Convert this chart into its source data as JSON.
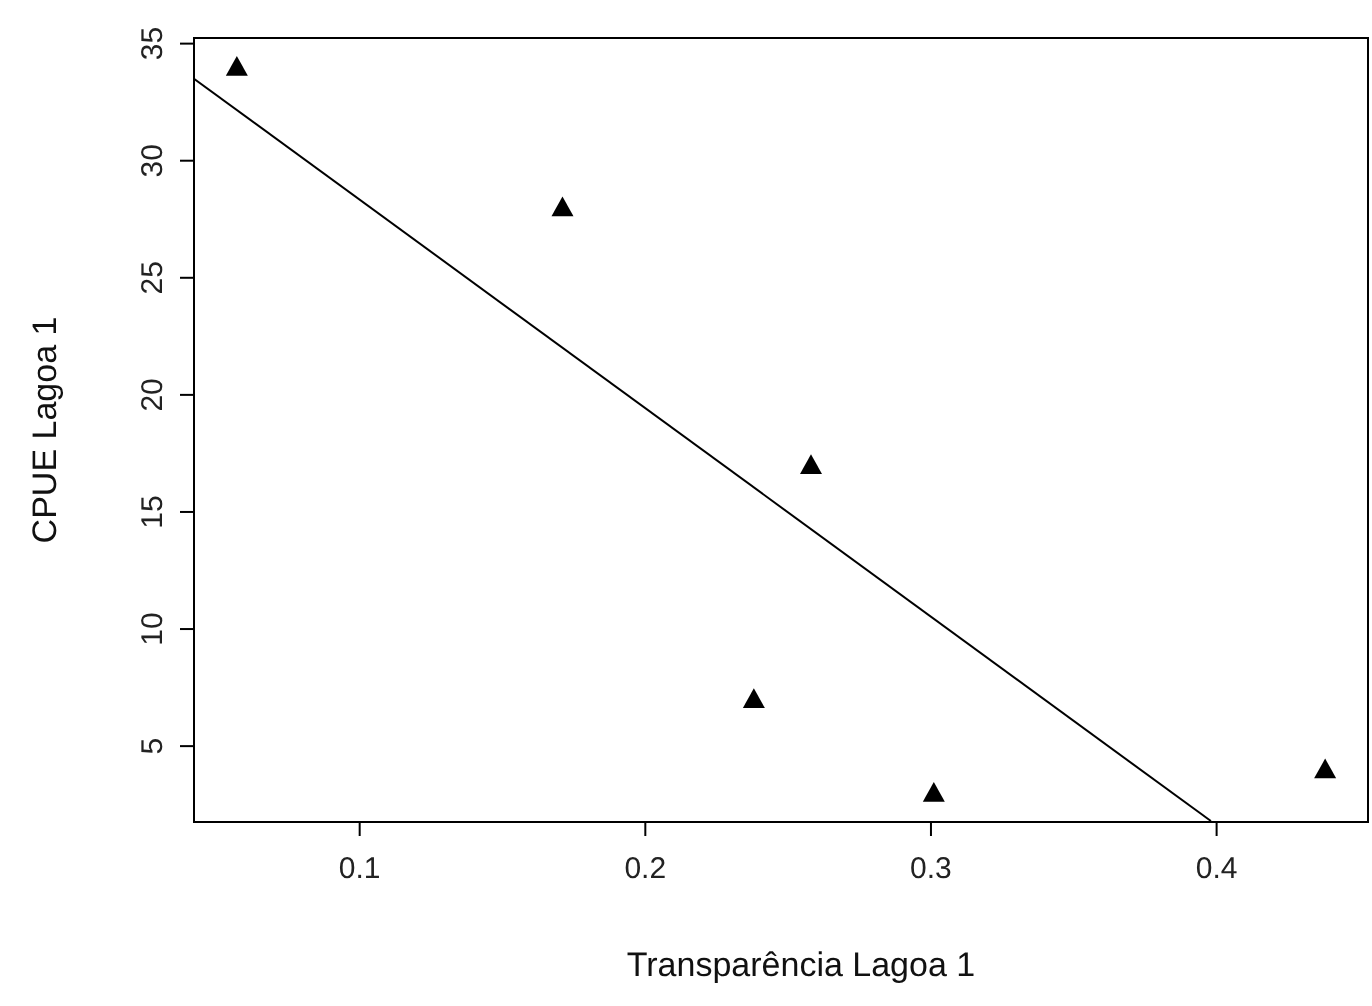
{
  "chart_data": {
    "type": "scatter",
    "xlabel": "Transparência Lagoa 1",
    "ylabel": "CPUE Lagoa 1",
    "xlim": [
      0.042,
      0.453
    ],
    "ylim": [
      1.76,
      35.24
    ],
    "xticks": [
      0.1,
      0.2,
      0.3,
      0.4
    ],
    "yticks": [
      5,
      10,
      15,
      20,
      25,
      30,
      35
    ],
    "grid": false,
    "marker": "triangle",
    "series": [
      {
        "color": "#000000",
        "x": [
          0.057,
          0.171,
          0.238,
          0.258,
          0.301,
          0.438
        ],
        "values": [
          34,
          28,
          7,
          17,
          3,
          4
        ]
      },
      {
        "type": "line",
        "color": "#000000",
        "marker": "none",
        "line_style": "solid",
        "x": [
          0.042,
          0.398
        ],
        "values": [
          33.5,
          1.8
        ]
      }
    ]
  }
}
